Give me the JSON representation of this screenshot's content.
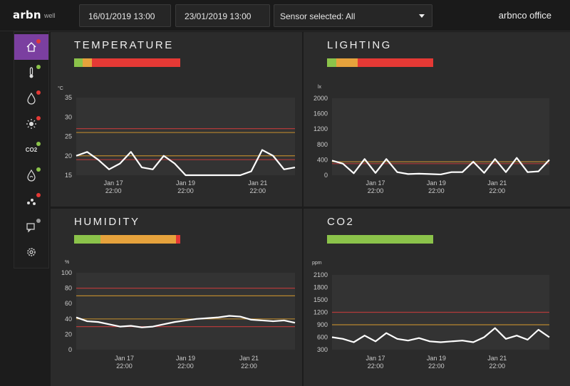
{
  "app": {
    "logo": "arbn",
    "logo_sub": "well",
    "site": "arbnco office"
  },
  "filters": {
    "start": "16/01/2019 13:00",
    "end": "23/01/2019 13:00",
    "sensor": "Sensor selected: All"
  },
  "sidebar": {
    "items": [
      {
        "icon": "home-icon",
        "active": true,
        "status": "#e53935"
      },
      {
        "icon": "thermometer-icon",
        "status": "#8bc34a"
      },
      {
        "icon": "humidity-drop-icon",
        "status": "#e53935"
      },
      {
        "icon": "sun-icon",
        "status": "#e53935"
      },
      {
        "icon": "co2-icon",
        "label": "CO2",
        "status": "#8bc34a"
      },
      {
        "icon": "leaf-drop-icon",
        "status": "#8bc34a"
      },
      {
        "icon": "particles-icon",
        "status": "#e53935"
      },
      {
        "icon": "chat-sensor-icon",
        "status": "#999999"
      },
      {
        "icon": "settings-gear-icon",
        "status": null
      }
    ]
  },
  "panels": {
    "temperature": {
      "title": "TEMPERATURE",
      "unit": "°C",
      "status": [
        [
          "#8bc34a",
          8
        ],
        [
          "#e6a23c",
          9
        ],
        [
          "#e53935",
          83
        ]
      ]
    },
    "lighting": {
      "title": "LIGHTING",
      "unit": "lx",
      "status": [
        [
          "#8bc34a",
          9
        ],
        [
          "#e6a23c",
          20
        ],
        [
          "#e53935",
          71
        ]
      ]
    },
    "humidity": {
      "title": "HUMIDITY",
      "unit": "%",
      "status": [
        [
          "#8bc34a",
          25
        ],
        [
          "#e6a23c",
          71
        ],
        [
          "#e53935",
          4
        ]
      ]
    },
    "co2": {
      "title": "CO2",
      "unit": "ppm",
      "status": [
        [
          "#8bc34a",
          100
        ]
      ]
    }
  },
  "chart_data": [
    {
      "type": "line",
      "title": "TEMPERATURE",
      "ylabel": "°C",
      "ylim": [
        15,
        35
      ],
      "yticks": [
        35,
        30,
        25,
        20,
        15
      ],
      "xticks": [
        "Jan 17\n22:00",
        "Jan 19\n22:00",
        "Jan 21\n22:00"
      ],
      "thresholds": [
        {
          "value": 27,
          "color": "#b23a3a"
        },
        {
          "value": 26,
          "color": "#b8862e"
        },
        {
          "value": 20,
          "color": "#b8862e"
        },
        {
          "value": 19,
          "color": "#b23a3a"
        }
      ],
      "x": [
        0,
        0.05,
        0.1,
        0.15,
        0.2,
        0.25,
        0.3,
        0.35,
        0.4,
        0.45,
        0.5,
        0.55,
        0.6,
        0.65,
        0.7,
        0.75,
        0.8,
        0.85,
        0.9,
        0.95,
        1
      ],
      "series": [
        {
          "values": [
            20,
            21,
            19,
            16.5,
            18,
            21,
            17,
            16.5,
            20,
            18,
            15,
            15,
            15,
            15,
            15,
            15,
            16,
            21.5,
            20,
            16.5,
            17
          ]
        }
      ]
    },
    {
      "type": "line",
      "title": "LIGHTING",
      "ylabel": "lx",
      "ylim": [
        0,
        2000
      ],
      "yticks": [
        2000,
        1600,
        1200,
        800,
        400,
        0
      ],
      "xticks": [
        "Jan 17\n22:00",
        "Jan 19\n22:00",
        "Jan 21\n22:00"
      ],
      "thresholds": [
        {
          "value": 350,
          "color": "#b8862e"
        },
        {
          "value": 300,
          "color": "#b23a3a"
        }
      ],
      "x": [
        0,
        0.05,
        0.1,
        0.15,
        0.2,
        0.25,
        0.3,
        0.35,
        0.4,
        0.45,
        0.5,
        0.55,
        0.6,
        0.65,
        0.7,
        0.75,
        0.8,
        0.85,
        0.9,
        0.95,
        1
      ],
      "series": [
        {
          "values": [
            380,
            300,
            50,
            420,
            60,
            420,
            80,
            30,
            40,
            30,
            20,
            80,
            80,
            350,
            60,
            420,
            80,
            450,
            80,
            100,
            400
          ]
        }
      ]
    },
    {
      "type": "line",
      "title": "HUMIDITY",
      "ylabel": "%",
      "ylim": [
        0,
        100
      ],
      "yticks": [
        100,
        80,
        60,
        40,
        20,
        0
      ],
      "xticks": [
        "Jan 17\n22:00",
        "Jan 19\n22:00",
        "Jan 21\n22:00"
      ],
      "thresholds": [
        {
          "value": 80,
          "color": "#b23a3a"
        },
        {
          "value": 70,
          "color": "#b8862e"
        },
        {
          "value": 40,
          "color": "#b8862e"
        },
        {
          "value": 30,
          "color": "#b23a3a"
        }
      ],
      "x": [
        0,
        0.05,
        0.1,
        0.15,
        0.2,
        0.25,
        0.3,
        0.35,
        0.4,
        0.45,
        0.5,
        0.55,
        0.6,
        0.65,
        0.7,
        0.75,
        0.8,
        0.85,
        0.9,
        0.95,
        1
      ],
      "series": [
        {
          "values": [
            42,
            37,
            36,
            33,
            30,
            31,
            29,
            30,
            33,
            36,
            38,
            40,
            41,
            42,
            44,
            43,
            39,
            38,
            37,
            38,
            35
          ]
        }
      ]
    },
    {
      "type": "line",
      "title": "CO2",
      "ylabel": "ppm",
      "ylim": [
        300,
        2100
      ],
      "yticks": [
        2100,
        1800,
        1500,
        1200,
        900,
        600,
        300
      ],
      "xticks": [
        "Jan 17\n22:00",
        "Jan 19\n22:00",
        "Jan 21\n22:00"
      ],
      "thresholds": [
        {
          "value": 1200,
          "color": "#b23a3a"
        },
        {
          "value": 900,
          "color": "#b8862e"
        }
      ],
      "x": [
        0,
        0.05,
        0.1,
        0.15,
        0.2,
        0.25,
        0.3,
        0.35,
        0.4,
        0.45,
        0.5,
        0.55,
        0.6,
        0.65,
        0.7,
        0.75,
        0.8,
        0.85,
        0.9,
        0.95,
        1
      ],
      "series": [
        {
          "values": [
            600,
            560,
            480,
            640,
            500,
            700,
            560,
            520,
            580,
            500,
            480,
            500,
            520,
            480,
            600,
            820,
            560,
            640,
            540,
            780,
            600
          ]
        }
      ]
    }
  ]
}
